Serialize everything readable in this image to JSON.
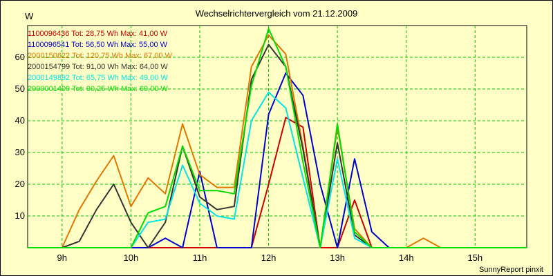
{
  "chart_data": {
    "type": "line",
    "title": "Wechselrichtervergleich vom 21.12.2009",
    "ylabel": "W",
    "xlabel": "",
    "x_tick_labels": [
      "9h",
      "10h",
      "11h",
      "12h",
      "13h",
      "14h",
      "15h"
    ],
    "y_ticks": [
      10,
      20,
      30,
      40,
      50,
      60
    ],
    "xlim": [
      8.5,
      15.75
    ],
    "ylim": [
      0,
      70
    ],
    "grid": true,
    "x": [
      8.5,
      8.75,
      9.0,
      9.25,
      9.5,
      9.75,
      10.0,
      10.25,
      10.5,
      10.75,
      11.0,
      11.25,
      11.5,
      11.75,
      12.0,
      12.25,
      12.5,
      12.75,
      13.0,
      13.25,
      13.5,
      13.75,
      14.0,
      14.25,
      14.5,
      14.75,
      15.0,
      15.25,
      15.5,
      15.75
    ],
    "series": [
      {
        "name": "1100096436",
        "label": "1100096436 Tot: 28,75 Wh Max: 41,00 W",
        "color": "#cc0000",
        "values": [
          0,
          0,
          0,
          0,
          0,
          0,
          0,
          0,
          0,
          0,
          0,
          0,
          0,
          0,
          20,
          41,
          38,
          0,
          0,
          15,
          0,
          0,
          0,
          0,
          0,
          0,
          0,
          0,
          0,
          0
        ]
      },
      {
        "name": "1100096541",
        "label": "1100096541 Tot: 56,50 Wh Max: 55,00 W",
        "color": "#0000cc",
        "values": [
          0,
          0,
          0,
          0,
          0,
          0,
          0,
          0,
          3,
          0,
          24,
          0,
          0,
          0,
          42,
          55,
          48,
          20,
          0,
          28,
          5,
          0,
          0,
          0,
          0,
          0,
          0,
          0,
          0,
          0
        ]
      },
      {
        "name": "2000150622",
        "label": "2000150622 Tot: 120,75 Wh Max: 67,00 W",
        "color": "#e07800",
        "values": [
          0,
          0,
          0,
          12,
          21,
          29,
          13,
          22,
          17,
          39,
          23,
          19,
          19,
          57,
          67,
          61,
          32,
          0,
          38,
          6,
          0,
          0,
          0,
          3,
          0,
          0,
          0,
          0,
          0,
          0
        ]
      },
      {
        "name": "2000154799",
        "label": "2000154799 Tot: 91,00 Wh Max: 64,00 W",
        "color": "#333333",
        "values": [
          0,
          0,
          0,
          2,
          12,
          20,
          8,
          0,
          8,
          32,
          16,
          12,
          13,
          53,
          64,
          57,
          31,
          0,
          33,
          4,
          0,
          0,
          0,
          0,
          0,
          0,
          0,
          0,
          0,
          0
        ]
      },
      {
        "name": "2000149892",
        "label": "2000149892 Tot: 65,75 Wh Max: 49,00 W",
        "color": "#00e5e5",
        "values": [
          0,
          0,
          0,
          0,
          0,
          0,
          0,
          8,
          9,
          26,
          14,
          10,
          9,
          40,
          49,
          44,
          22,
          0,
          28,
          3,
          0,
          0,
          0,
          0,
          0,
          0,
          0,
          0,
          0,
          0
        ]
      },
      {
        "name": "2000001409",
        "label": "2000001409 Tot: 90,25 Wh Max: 69,00 W",
        "color": "#00dd00",
        "values": [
          0,
          0,
          0,
          0,
          0,
          0,
          0,
          11,
          13,
          32,
          18,
          18,
          17,
          51,
          69,
          57,
          27,
          0,
          39,
          5,
          0,
          0,
          0,
          0,
          0,
          0,
          0,
          0,
          0,
          0
        ]
      }
    ]
  },
  "footer": "SunnyReport pinxit"
}
